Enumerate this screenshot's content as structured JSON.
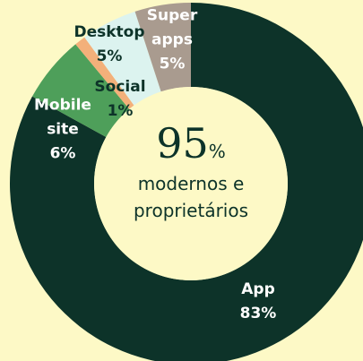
{
  "chart_data": {
    "type": "donut",
    "categories": [
      "App",
      "Mobile site",
      "Social",
      "Desktop",
      "Super apps"
    ],
    "values": [
      83,
      6,
      1,
      5,
      5
    ],
    "value_labels": [
      "83%",
      "6%",
      "1%",
      "5%",
      "5%"
    ],
    "colors": [
      "#0d3329",
      "#4e9f5a",
      "#f3b07a",
      "#dcf3ef",
      "#a99b8f"
    ],
    "label_colors": [
      "#ffffff",
      "#ffffff",
      "#0d3329",
      "#0d3329",
      "#ffffff"
    ],
    "center": {
      "value": 95,
      "unit": "%",
      "text": "modernos e proprietários"
    }
  }
}
